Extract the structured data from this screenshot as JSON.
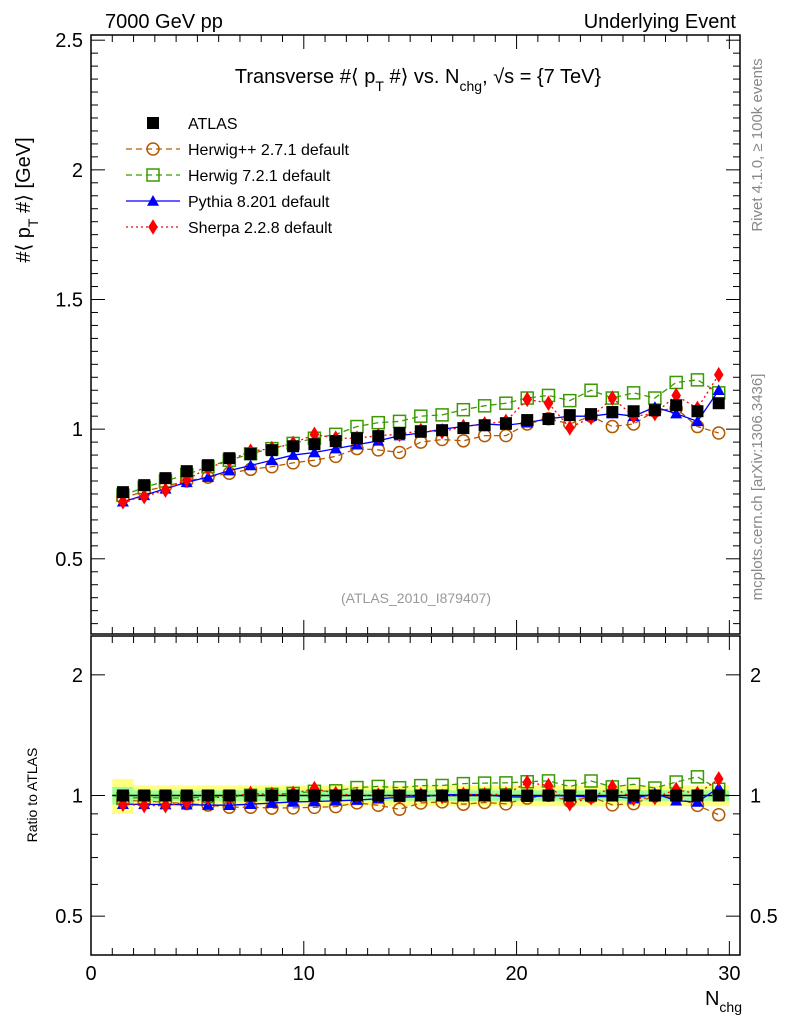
{
  "header": {
    "left": "7000 GeV pp",
    "right": "Underlying Event"
  },
  "side_labels": {
    "rivet": "Rivet 4.1.0, ≥ 100k events",
    "mcplots": "mcplots.cern.ch [arXiv:1306.3436]"
  },
  "analysis_tag": "(ATLAS_2010_I879407)",
  "chart_data": {
    "type": "scatter",
    "title": "Transverse #⟨ p_T #⟩ vs. N_chg, √s = {7 TeV}",
    "title_main": "Transverse #⟨ p",
    "title_sub1": "T",
    "title_mid": " #⟩ vs. N",
    "title_sub2": "chg",
    "title_end": ", √s = {7 TeV}",
    "ylabel": "#⟨ p_T #⟩ [GeV]",
    "ylabel_main": "#⟨ p",
    "ylabel_sub": "T",
    "ylabel_end": " #⟩ [GeV]",
    "xlabel": "N_chg",
    "xlabel_main": "N",
    "xlabel_sub": "chg",
    "ratio_ylabel": "Ratio to ATLAS",
    "xlim": [
      0,
      30.5
    ],
    "ylim": [
      0.21,
      2.52
    ],
    "ratio_ylim": [
      0.4,
      2.5
    ],
    "ratio_scale": "log",
    "xticks": [
      "0",
      "10",
      "20",
      "30"
    ],
    "yticks": [
      "0.5",
      "1",
      "1.5",
      "2",
      "2.5"
    ],
    "ratio_yticks": [
      "0.5",
      "1",
      "2"
    ],
    "legend_position": "top-left",
    "x": [
      1.5,
      2.5,
      3.5,
      4.5,
      5.5,
      6.5,
      7.5,
      8.5,
      9.5,
      10.5,
      11.5,
      12.5,
      13.5,
      14.5,
      15.5,
      16.5,
      17.5,
      18.5,
      19.5,
      20.5,
      21.5,
      22.5,
      23.5,
      24.5,
      25.5,
      26.5,
      27.5,
      28.5,
      29.5
    ],
    "series": [
      {
        "name": "ATLAS",
        "color": "#000000",
        "marker": "square",
        "values": [
          0.757,
          0.784,
          0.811,
          0.838,
          0.861,
          0.888,
          0.904,
          0.919,
          0.934,
          0.942,
          0.954,
          0.965,
          0.973,
          0.985,
          0.992,
          0.996,
          1.004,
          1.015,
          1.023,
          1.035,
          1.039,
          1.054,
          1.058,
          1.066,
          1.069,
          1.073,
          1.092,
          1.069,
          1.1
        ]
      },
      {
        "name": "Herwig++ 2.7.1 default",
        "color": "#b35900",
        "marker": "open-circle",
        "line": "dashed",
        "values": [
          0.735,
          0.76,
          0.78,
          0.8,
          0.815,
          0.83,
          0.845,
          0.855,
          0.87,
          0.88,
          0.895,
          0.925,
          0.92,
          0.91,
          0.95,
          0.96,
          0.955,
          0.975,
          0.975,
          1.02,
          1.04,
          1.02,
          1.05,
          1.01,
          1.02,
          1.07,
          1.08,
          1.01,
          0.985
        ]
      },
      {
        "name": "Herwig 7.2.1 default",
        "color": "#3a9a00",
        "marker": "open-square",
        "line": "dashed",
        "values": [
          0.745,
          0.775,
          0.8,
          0.825,
          0.855,
          0.88,
          0.905,
          0.925,
          0.945,
          0.965,
          0.98,
          1.01,
          1.025,
          1.03,
          1.05,
          1.055,
          1.075,
          1.09,
          1.1,
          1.12,
          1.13,
          1.11,
          1.15,
          1.12,
          1.14,
          1.12,
          1.18,
          1.19,
          1.14
        ]
      },
      {
        "name": "Pythia 8.201 default",
        "color": "#0000ff",
        "marker": "triangle",
        "line": "solid",
        "values": [
          0.72,
          0.745,
          0.77,
          0.795,
          0.815,
          0.84,
          0.86,
          0.88,
          0.9,
          0.91,
          0.925,
          0.94,
          0.955,
          0.975,
          0.985,
          1.0,
          1.01,
          1.02,
          1.015,
          1.025,
          1.04,
          1.05,
          1.05,
          1.06,
          1.05,
          1.085,
          1.06,
          1.03,
          1.15
        ]
      },
      {
        "name": "Sherpa 2.2.8 default",
        "color": "#ff0000",
        "marker": "diamond",
        "line": "dotted",
        "values": [
          0.72,
          0.74,
          0.765,
          0.805,
          0.85,
          0.88,
          0.915,
          0.925,
          0.945,
          0.98,
          0.965,
          0.965,
          0.975,
          0.98,
          0.995,
          0.99,
          1.01,
          1.02,
          1.03,
          1.115,
          1.1,
          1.005,
          1.045,
          1.12,
          1.05,
          1.06,
          1.13,
          1.08,
          1.21
        ]
      }
    ]
  }
}
